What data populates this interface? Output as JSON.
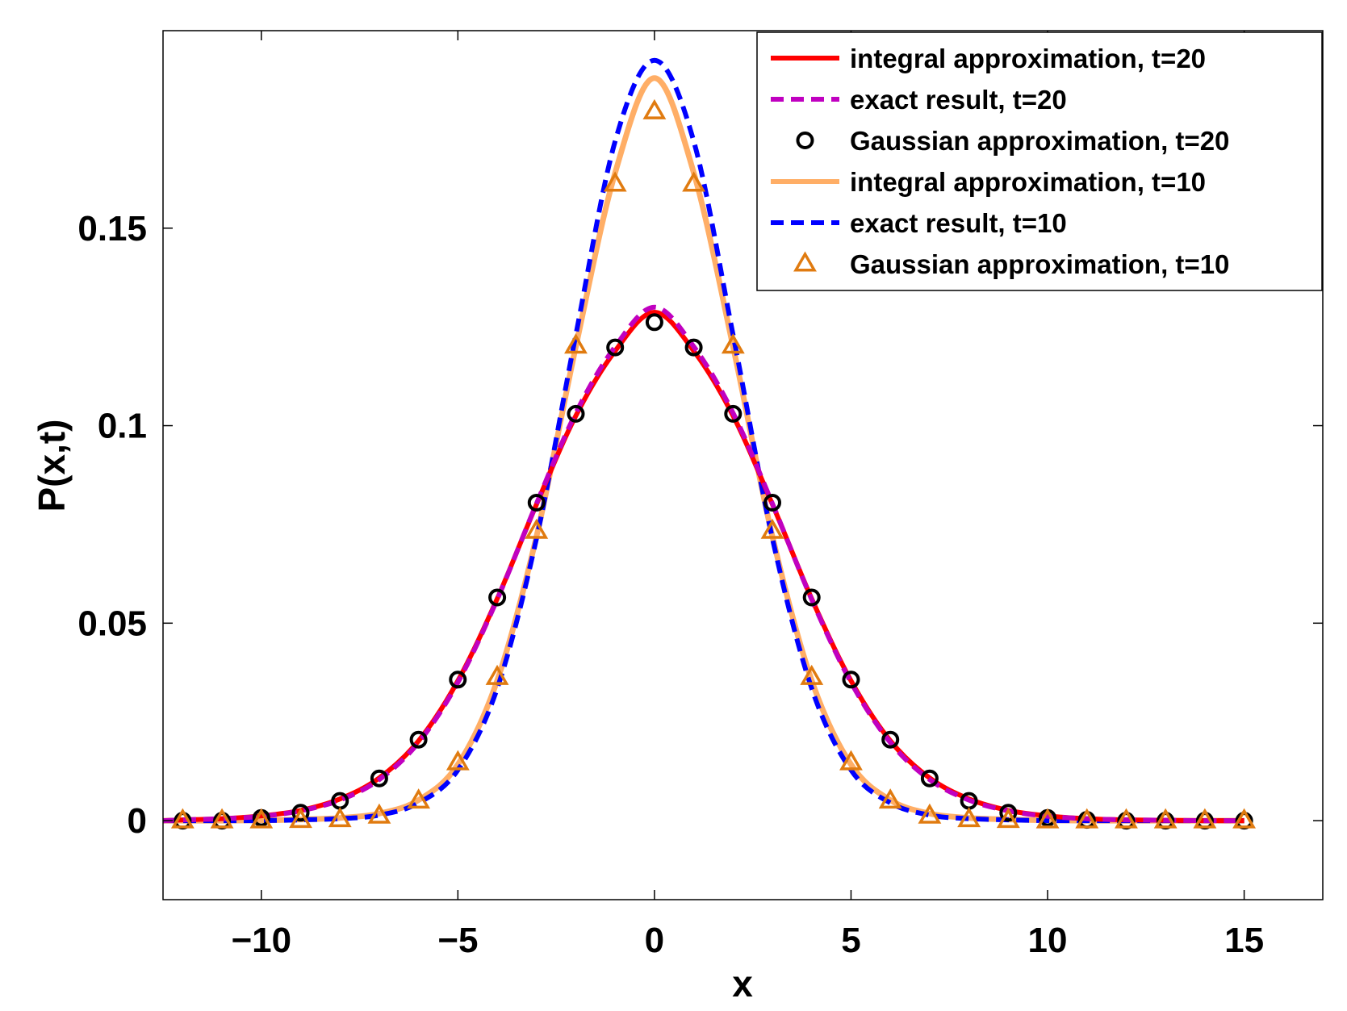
{
  "chart_data": {
    "type": "line",
    "title": "",
    "xlabel": "x",
    "ylabel": "P(x,t)",
    "xlim": [
      -12.5,
      17
    ],
    "ylim": [
      -0.02,
      0.2
    ],
    "xticks": [
      -10,
      -5,
      0,
      5,
      10,
      15
    ],
    "xtick_labels": [
      "−10",
      "−5",
      "0",
      "5",
      "10",
      "15"
    ],
    "yticks": [
      0,
      0.05,
      0.1,
      0.15
    ],
    "ytick_labels": [
      "0",
      "0.05",
      "0.1",
      "0.15"
    ],
    "grid": false,
    "legend_position": "top-right",
    "series": [
      {
        "name": "integral approximation, t=20",
        "style": "solid",
        "color": "#ff0000",
        "x": [
          -12.5,
          -12,
          -11,
          -10,
          -9,
          -8,
          -7,
          -6,
          -5,
          -4,
          -3,
          -2,
          -1,
          0,
          1,
          2,
          3,
          4,
          5,
          6,
          7,
          8,
          9,
          10,
          11,
          12,
          13,
          14,
          15
        ],
        "y": [
          0.0,
          0.0002,
          0.0005,
          0.0012,
          0.0026,
          0.0055,
          0.0108,
          0.0202,
          0.0354,
          0.0562,
          0.0801,
          0.1025,
          0.1189,
          0.1287,
          0.1189,
          0.1025,
          0.0801,
          0.0562,
          0.0354,
          0.0202,
          0.0108,
          0.0055,
          0.0026,
          0.0012,
          0.0005,
          0.0002,
          0.0001,
          0.0,
          0.0
        ]
      },
      {
        "name": "exact result, t=20",
        "style": "dashed",
        "color": "#c000c0",
        "x": [
          -12.5,
          -12,
          -11,
          -10,
          -9,
          -8,
          -7,
          -6,
          -5,
          -4,
          -3,
          -2,
          -1,
          0,
          1,
          2,
          3,
          4,
          5,
          6,
          7,
          8,
          9,
          10,
          11,
          12,
          13,
          14,
          15
        ],
        "y": [
          0.0,
          0.0002,
          0.0005,
          0.0011,
          0.0025,
          0.0052,
          0.0104,
          0.0198,
          0.035,
          0.056,
          0.0803,
          0.1032,
          0.12,
          0.13,
          0.12,
          0.1032,
          0.0803,
          0.056,
          0.035,
          0.0198,
          0.0104,
          0.0052,
          0.0025,
          0.0011,
          0.0005,
          0.0002,
          0.0001,
          0.0,
          0.0
        ]
      },
      {
        "name": "Gaussian approximation, t=20",
        "style": "marker-circle",
        "color": "#000000",
        "x": [
          -12,
          -11,
          -10,
          -9,
          -8,
          -7,
          -6,
          -5,
          -4,
          -3,
          -2,
          -1,
          0,
          1,
          2,
          3,
          4,
          5,
          6,
          7,
          8,
          9,
          10,
          11,
          12,
          13,
          14,
          15
        ],
        "y": [
          0.0,
          0.0,
          0.0007,
          0.002,
          0.005,
          0.0107,
          0.0205,
          0.0357,
          0.0565,
          0.0805,
          0.103,
          0.1198,
          0.1262,
          0.1198,
          0.103,
          0.0805,
          0.0565,
          0.0357,
          0.0205,
          0.0107,
          0.005,
          0.002,
          0.0007,
          0.0002,
          0.0,
          0.0,
          0.0,
          0.0
        ]
      },
      {
        "name": "integral approximation, t=10",
        "style": "solid",
        "color": "#ffae66",
        "x": [
          -12.5,
          -12,
          -11,
          -10,
          -9,
          -8,
          -7,
          -6,
          -5,
          -4,
          -3,
          -2,
          -1,
          0,
          1,
          2,
          3,
          4,
          5,
          6,
          7,
          8,
          9,
          10,
          11,
          12,
          13,
          14,
          15
        ],
        "y": [
          0.0,
          0.0,
          0.0,
          0.0001,
          0.0003,
          0.0007,
          0.0018,
          0.0052,
          0.0142,
          0.0355,
          0.072,
          0.12,
          0.164,
          0.188,
          0.164,
          0.12,
          0.072,
          0.0355,
          0.0142,
          0.0052,
          0.0018,
          0.0007,
          0.0003,
          0.0001,
          0.0,
          0.0,
          0.0,
          0.0,
          0.0
        ]
      },
      {
        "name": "exact result, t=10",
        "style": "dashed",
        "color": "#0000ff",
        "x": [
          -12.5,
          -12,
          -11,
          -10,
          -9,
          -8,
          -7,
          -6,
          -5,
          -4,
          -3,
          -2,
          -1,
          0,
          1,
          2,
          3,
          4,
          5,
          6,
          7,
          8,
          9,
          10,
          11,
          12,
          13,
          14,
          15
        ],
        "y": [
          0.0,
          0.0,
          0.0,
          0.0,
          0.0002,
          0.0005,
          0.0014,
          0.0045,
          0.0128,
          0.0335,
          0.0715,
          0.123,
          0.172,
          0.1925,
          0.172,
          0.123,
          0.0715,
          0.0335,
          0.0128,
          0.0045,
          0.0014,
          0.0005,
          0.0002,
          0.0,
          0.0,
          0.0,
          0.0,
          0.0,
          0.0
        ]
      },
      {
        "name": "Gaussian approximation, t=10",
        "style": "marker-triangle",
        "color": "#e07b10",
        "x": [
          -12,
          -11,
          -10,
          -9,
          -8,
          -7,
          -6,
          -5,
          -4,
          -3,
          -2,
          -1,
          0,
          1,
          2,
          3,
          4,
          5,
          6,
          7,
          8,
          9,
          10,
          11,
          12,
          13,
          14,
          15
        ],
        "y": [
          0.0,
          0.0,
          0.0,
          0.0001,
          0.0003,
          0.0012,
          0.005,
          0.0147,
          0.0363,
          0.0733,
          0.1202,
          0.1612,
          0.1795,
          0.1612,
          0.1202,
          0.0733,
          0.0363,
          0.0147,
          0.005,
          0.0012,
          0.0003,
          0.0001,
          0.0,
          0.0,
          0.0,
          0.0,
          0.0,
          0.0
        ]
      }
    ]
  }
}
